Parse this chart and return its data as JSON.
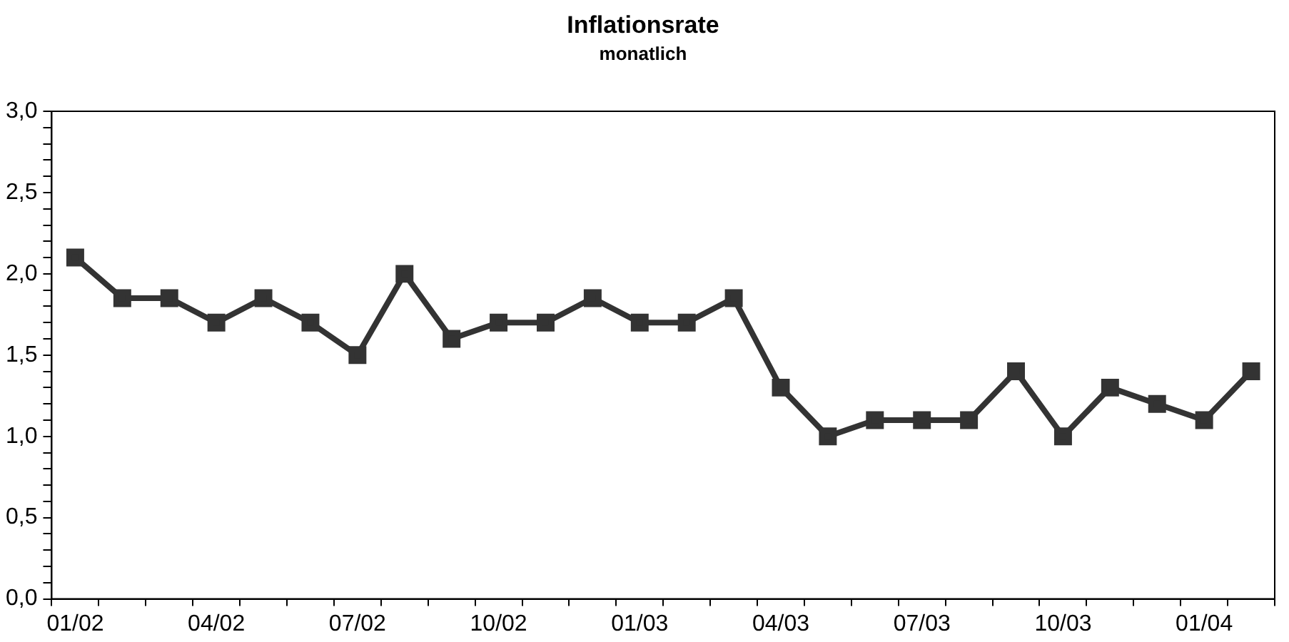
{
  "chart_data": {
    "type": "line",
    "title": "Inflationsrate",
    "subtitle": "monatlich",
    "categories": [
      "01/02",
      null,
      null,
      "04/02",
      null,
      null,
      "07/02",
      null,
      null,
      "10/02",
      null,
      null,
      "01/03",
      null,
      null,
      "04/03",
      null,
      null,
      "07/03",
      null,
      null,
      "10/03",
      null,
      null,
      "01/04",
      null
    ],
    "series": [
      {
        "color": "#333333",
        "values": [
          2.1,
          1.85,
          1.85,
          1.7,
          1.85,
          1.7,
          1.5,
          2.0,
          1.6,
          1.7,
          1.7,
          1.85,
          1.7,
          1.7,
          1.85,
          1.3,
          1.0,
          1.1,
          1.1,
          1.1,
          1.4,
          1.0,
          1.3,
          1.2,
          1.1,
          1.4
        ]
      }
    ],
    "ylim": [
      0,
      3
    ],
    "yticks": [
      {
        "value": 0,
        "label": "0,0"
      },
      {
        "value": 0.1,
        "label": null
      },
      {
        "value": 0.2,
        "label": null
      },
      {
        "value": 0.3,
        "label": null
      },
      {
        "value": 0.4,
        "label": null
      },
      {
        "value": 0.5,
        "label": "0,5"
      },
      {
        "value": 0.6,
        "label": null
      },
      {
        "value": 0.7,
        "label": null
      },
      {
        "value": 0.8,
        "label": null
      },
      {
        "value": 0.9,
        "label": null
      },
      {
        "value": 1,
        "label": "1,0"
      },
      {
        "value": 1.1,
        "label": null
      },
      {
        "value": 1.2,
        "label": null
      },
      {
        "value": 1.3,
        "label": null
      },
      {
        "value": 1.4,
        "label": null
      },
      {
        "value": 1.5,
        "label": "1,5"
      },
      {
        "value": 1.6,
        "label": null
      },
      {
        "value": 1.7,
        "label": null
      },
      {
        "value": 1.8,
        "label": null
      },
      {
        "value": 1.9,
        "label": null
      },
      {
        "value": 2,
        "label": "2,0"
      },
      {
        "value": 2.1,
        "label": null
      },
      {
        "value": 2.2,
        "label": null
      },
      {
        "value": 2.3,
        "label": null
      },
      {
        "value": 2.4,
        "label": null
      },
      {
        "value": 2.5,
        "label": "2,5"
      },
      {
        "value": 2.6,
        "label": null
      },
      {
        "value": 2.7,
        "label": null
      },
      {
        "value": 2.8,
        "label": null
      },
      {
        "value": 2.9,
        "label": null
      },
      {
        "value": 3,
        "label": "3,0"
      }
    ],
    "grid": false,
    "legend": false,
    "marker": "square",
    "line_style": "solid"
  }
}
